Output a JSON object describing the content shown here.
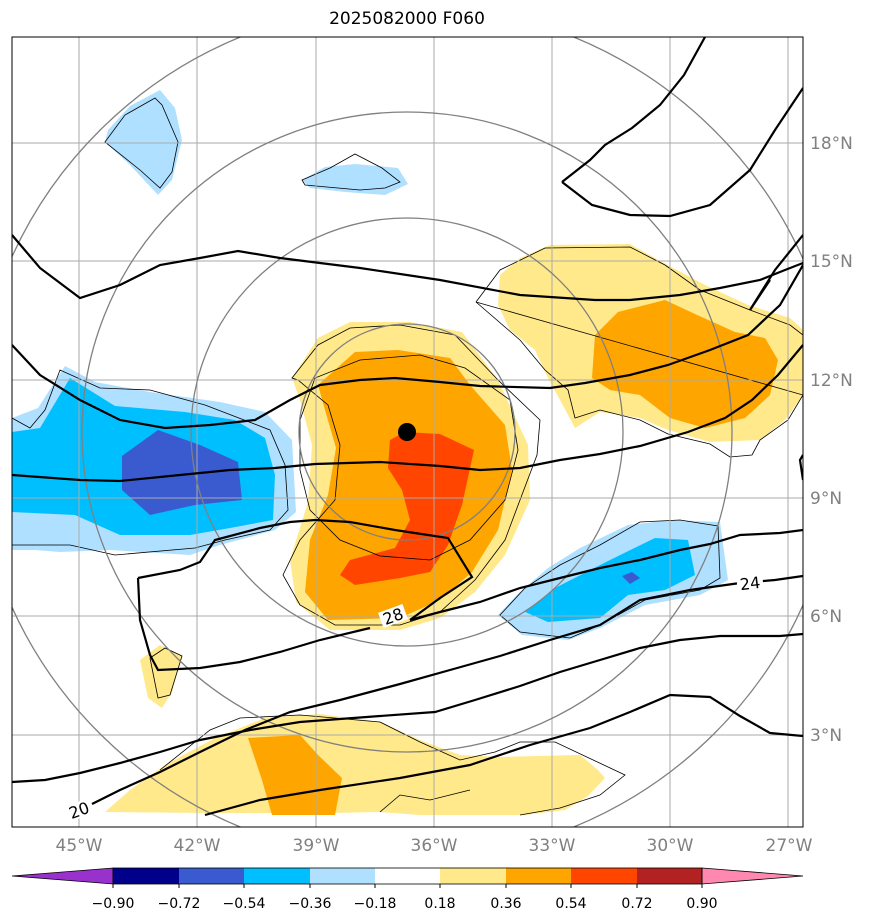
{
  "title": "2025082000 F060",
  "lon_labels": [
    "45°W",
    "42°W",
    "39°W",
    "36°W",
    "33°W",
    "30°W",
    "27°W"
  ],
  "lat_labels": [
    "18°N",
    "15°N",
    "12°N",
    "9°N",
    "6°N",
    "3°N"
  ],
  "contour_labels": [
    "20",
    "24",
    "28"
  ],
  "colorbar": {
    "ticks": [
      "−0.90",
      "−0.72",
      "−0.54",
      "−0.36",
      "−0.18",
      "0.18",
      "0.36",
      "0.54",
      "0.72",
      "0.90"
    ],
    "colors": [
      "#9932cc",
      "#00008b",
      "#3a5bd0",
      "#00bfff",
      "#b0e0ff",
      "#ffffff",
      "#ffe98a",
      "#ffa500",
      "#ff4500",
      "#b22222",
      "#ff88b0"
    ]
  },
  "colors": {
    "light_blue": "#b0e0ff",
    "blue": "#00bfff",
    "royal_blue": "#3a5bd0",
    "light_yellow": "#ffe98a",
    "orange": "#ffa500",
    "red_orange": "#ff4500",
    "grid": "#aaaaaa",
    "range_rings": "#808080"
  },
  "storm_center": {
    "lon": "36.6°W",
    "lat": "10.7°N"
  }
}
